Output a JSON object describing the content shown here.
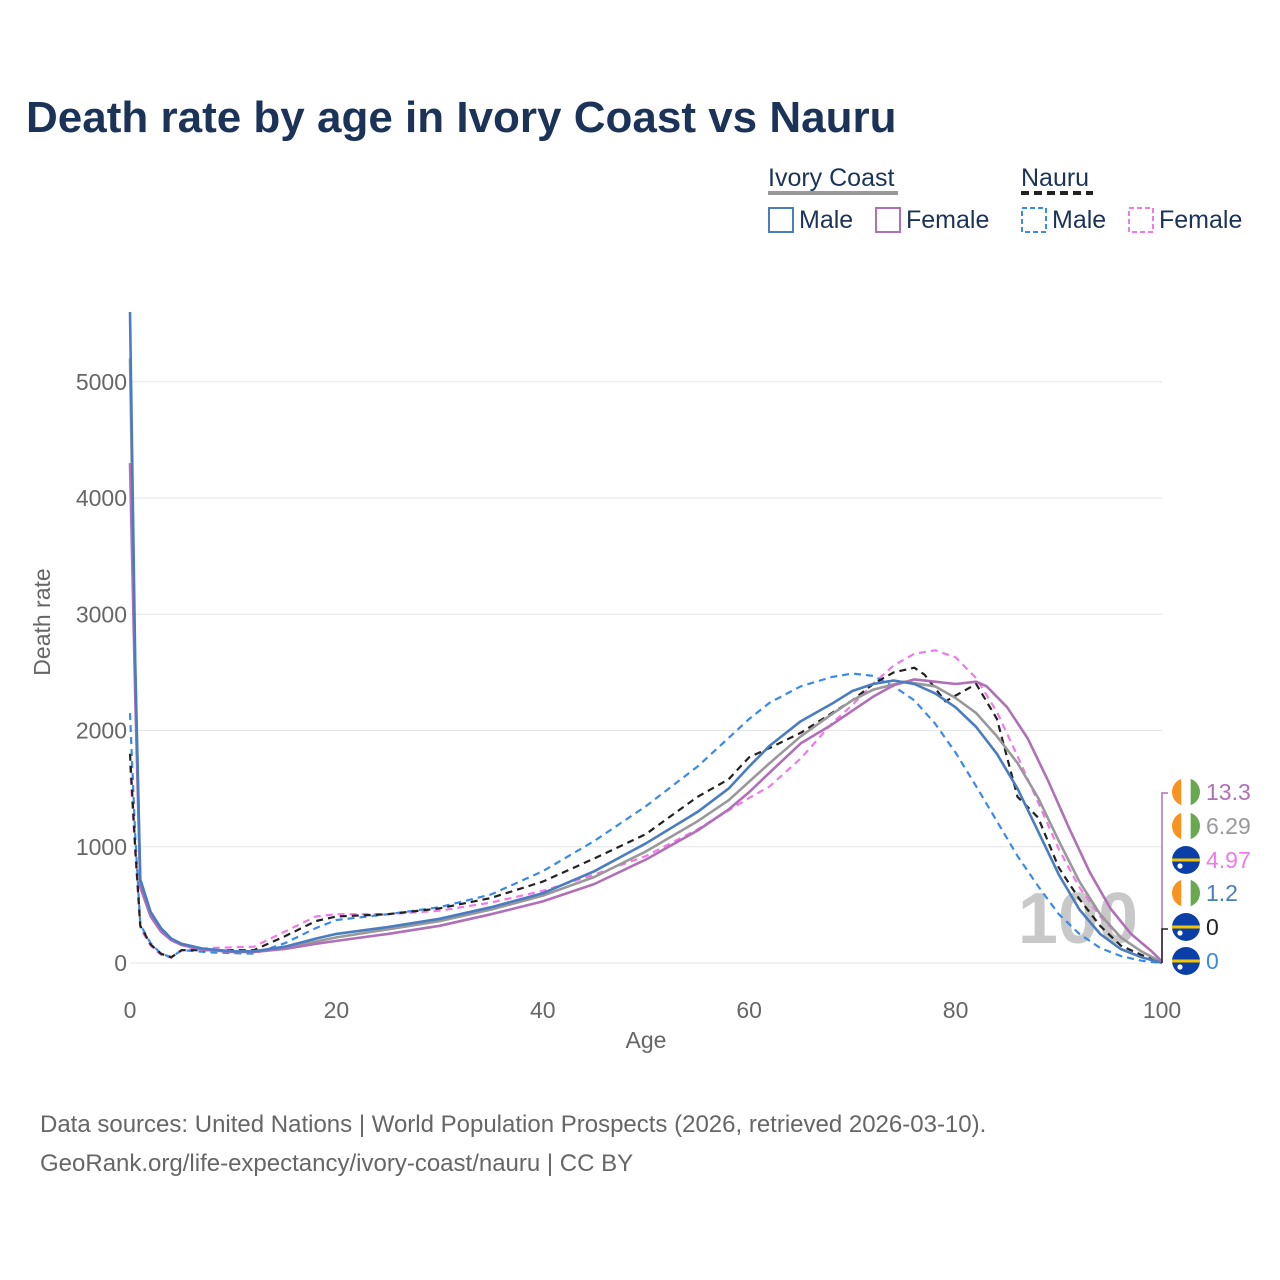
{
  "chart_data": {
    "type": "line",
    "title": "Death rate by age in Ivory Coast vs Nauru",
    "xlabel": "Age",
    "ylabel": "Death rate",
    "xlim": [
      0,
      100
    ],
    "ylim": [
      0,
      5600
    ],
    "x_ticks": [
      0,
      20,
      40,
      60,
      80,
      100
    ],
    "y_ticks": [
      0,
      1000,
      2000,
      3000,
      4000,
      5000
    ],
    "grid": true,
    "legend_groups": [
      {
        "country": "Ivory Coast",
        "line_style": "solid",
        "color": "#999999",
        "entries": [
          {
            "label": "Male",
            "color": "#4a7cc0"
          },
          {
            "label": "Female",
            "color": "#b070b8"
          }
        ]
      },
      {
        "country": "Nauru",
        "line_style": "dashed",
        "color": "#222222",
        "entries": [
          {
            "label": "Male",
            "color": "#3a8ae8"
          },
          {
            "label": "Female",
            "color": "#f07ae8"
          }
        ]
      }
    ],
    "watermark": "100",
    "series": [
      {
        "name": "Ivory Coast Total",
        "style": "solid",
        "color": "#999999",
        "x": [
          0,
          0.5,
          1,
          2,
          3,
          4,
          5,
          7,
          10,
          12,
          15,
          18,
          20,
          25,
          30,
          35,
          40,
          45,
          50,
          55,
          58,
          60,
          62,
          65,
          68,
          70,
          72,
          75,
          78,
          80,
          82,
          84,
          86,
          88,
          90,
          92,
          94,
          96,
          98,
          100
        ],
        "y": [
          5200,
          2500,
          680,
          420,
          280,
          200,
          160,
          120,
          100,
          100,
          130,
          185,
          220,
          290,
          360,
          460,
          580,
          740,
          960,
          1220,
          1400,
          1560,
          1720,
          1950,
          2140,
          2260,
          2350,
          2420,
          2380,
          2280,
          2150,
          1950,
          1720,
          1420,
          1050,
          700,
          420,
          220,
          100,
          6.29
        ]
      },
      {
        "name": "Ivory Coast Male",
        "style": "solid",
        "color": "#4a7cc0",
        "x": [
          0,
          0.5,
          1,
          2,
          3,
          4,
          5,
          7,
          10,
          12,
          15,
          18,
          20,
          25,
          30,
          35,
          40,
          45,
          50,
          55,
          58,
          60,
          62,
          65,
          68,
          70,
          72,
          74,
          76,
          78,
          80,
          82,
          84,
          86,
          88,
          90,
          92,
          94,
          96,
          98,
          100
        ],
        "y": [
          5600,
          2600,
          720,
          440,
          300,
          210,
          165,
          125,
          100,
          100,
          140,
          210,
          250,
          310,
          380,
          480,
          600,
          790,
          1030,
          1300,
          1500,
          1690,
          1870,
          2080,
          2230,
          2340,
          2400,
          2430,
          2400,
          2320,
          2200,
          2030,
          1800,
          1500,
          1130,
          760,
          460,
          250,
          120,
          50,
          1.2
        ]
      },
      {
        "name": "Ivory Coast Female",
        "style": "solid",
        "color": "#b070b8",
        "x": [
          0,
          0.5,
          1,
          2,
          3,
          4,
          5,
          7,
          10,
          12,
          15,
          18,
          20,
          25,
          30,
          35,
          40,
          45,
          50,
          55,
          58,
          60,
          62,
          65,
          68,
          70,
          72,
          74,
          76,
          78,
          80,
          82,
          83,
          85,
          87,
          89,
          91,
          93,
          95,
          97,
          99,
          100
        ],
        "y": [
          4300,
          2300,
          650,
          400,
          270,
          195,
          155,
          115,
          95,
          95,
          120,
          165,
          190,
          250,
          320,
          420,
          530,
          680,
          890,
          1140,
          1320,
          1470,
          1640,
          1890,
          2050,
          2170,
          2290,
          2390,
          2440,
          2420,
          2400,
          2420,
          2380,
          2200,
          1930,
          1560,
          1160,
          780,
          470,
          250,
          100,
          13.3
        ]
      },
      {
        "name": "Nauru Total",
        "style": "dashed",
        "color": "#222222",
        "x": [
          0,
          0.5,
          1,
          2,
          3,
          4,
          5,
          8,
          12,
          15,
          18,
          20,
          25,
          30,
          35,
          40,
          45,
          50,
          55,
          58,
          60,
          62,
          65,
          68,
          70,
          72,
          74,
          76,
          77,
          79,
          81,
          82,
          84,
          86,
          88,
          90,
          92,
          94,
          96,
          98,
          100
        ],
        "y": [
          1800,
          1000,
          320,
          160,
          80,
          50,
          110,
          110,
          110,
          230,
          360,
          400,
          420,
          470,
          560,
          700,
          900,
          1110,
          1430,
          1580,
          1770,
          1850,
          1980,
          2150,
          2260,
          2400,
          2500,
          2540,
          2480,
          2250,
          2350,
          2400,
          2100,
          1430,
          1250,
          820,
          550,
          320,
          150,
          70,
          0
        ]
      },
      {
        "name": "Nauru Male",
        "style": "dashed",
        "color": "#3a8ae8",
        "x": [
          0,
          0.5,
          1,
          2,
          3,
          4,
          5,
          8,
          12,
          15,
          18,
          20,
          25,
          30,
          35,
          40,
          45,
          50,
          55,
          60,
          62,
          65,
          68,
          70,
          72,
          74,
          76,
          78,
          80,
          82,
          84,
          86,
          88,
          90,
          92,
          94,
          96,
          98,
          100
        ],
        "y": [
          2150,
          1100,
          330,
          170,
          80,
          50,
          110,
          90,
          80,
          170,
          300,
          370,
          420,
          480,
          590,
          790,
          1050,
          1350,
          1690,
          2100,
          2240,
          2380,
          2460,
          2490,
          2470,
          2380,
          2260,
          2060,
          1810,
          1520,
          1220,
          920,
          660,
          420,
          250,
          130,
          60,
          20,
          0
        ]
      },
      {
        "name": "Nauru Female",
        "style": "dashed",
        "color": "#f07ae8",
        "x": [
          0,
          0.5,
          1,
          2,
          3,
          4,
          5,
          8,
          12,
          15,
          18,
          20,
          25,
          30,
          35,
          40,
          45,
          50,
          55,
          60,
          62,
          65,
          68,
          70,
          72,
          74,
          76,
          78,
          80,
          82,
          84,
          86,
          88,
          90,
          92,
          94,
          96,
          98,
          100
        ],
        "y": [
          1700,
          950,
          300,
          150,
          70,
          45,
          110,
          130,
          140,
          270,
          400,
          420,
          420,
          450,
          520,
          620,
          760,
          920,
          1150,
          1420,
          1520,
          1760,
          2060,
          2220,
          2400,
          2560,
          2660,
          2690,
          2630,
          2450,
          2160,
          1780,
          1380,
          980,
          650,
          400,
          220,
          100,
          4.97
        ]
      }
    ],
    "end_labels": [
      {
        "value": "13.3",
        "color": "#b070b8",
        "country": "Ivory Coast"
      },
      {
        "value": "6.29",
        "color": "#999999",
        "country": "Ivory Coast"
      },
      {
        "value": "4.97",
        "color": "#f07ae8",
        "country": "Nauru"
      },
      {
        "value": "1.2",
        "color": "#4a7cc0",
        "country": "Ivory Coast"
      },
      {
        "value": "0",
        "color": "#222222",
        "country": "Nauru"
      },
      {
        "value": "0",
        "color": "#3a8ae8",
        "country": "Nauru"
      }
    ]
  },
  "source": {
    "line1": "Data sources: United Nations | World Population Prospects (2026, retrieved 2026-03-10).",
    "line2": "GeoRank.org/life-expectancy/ivory-coast/nauru | CC BY"
  }
}
